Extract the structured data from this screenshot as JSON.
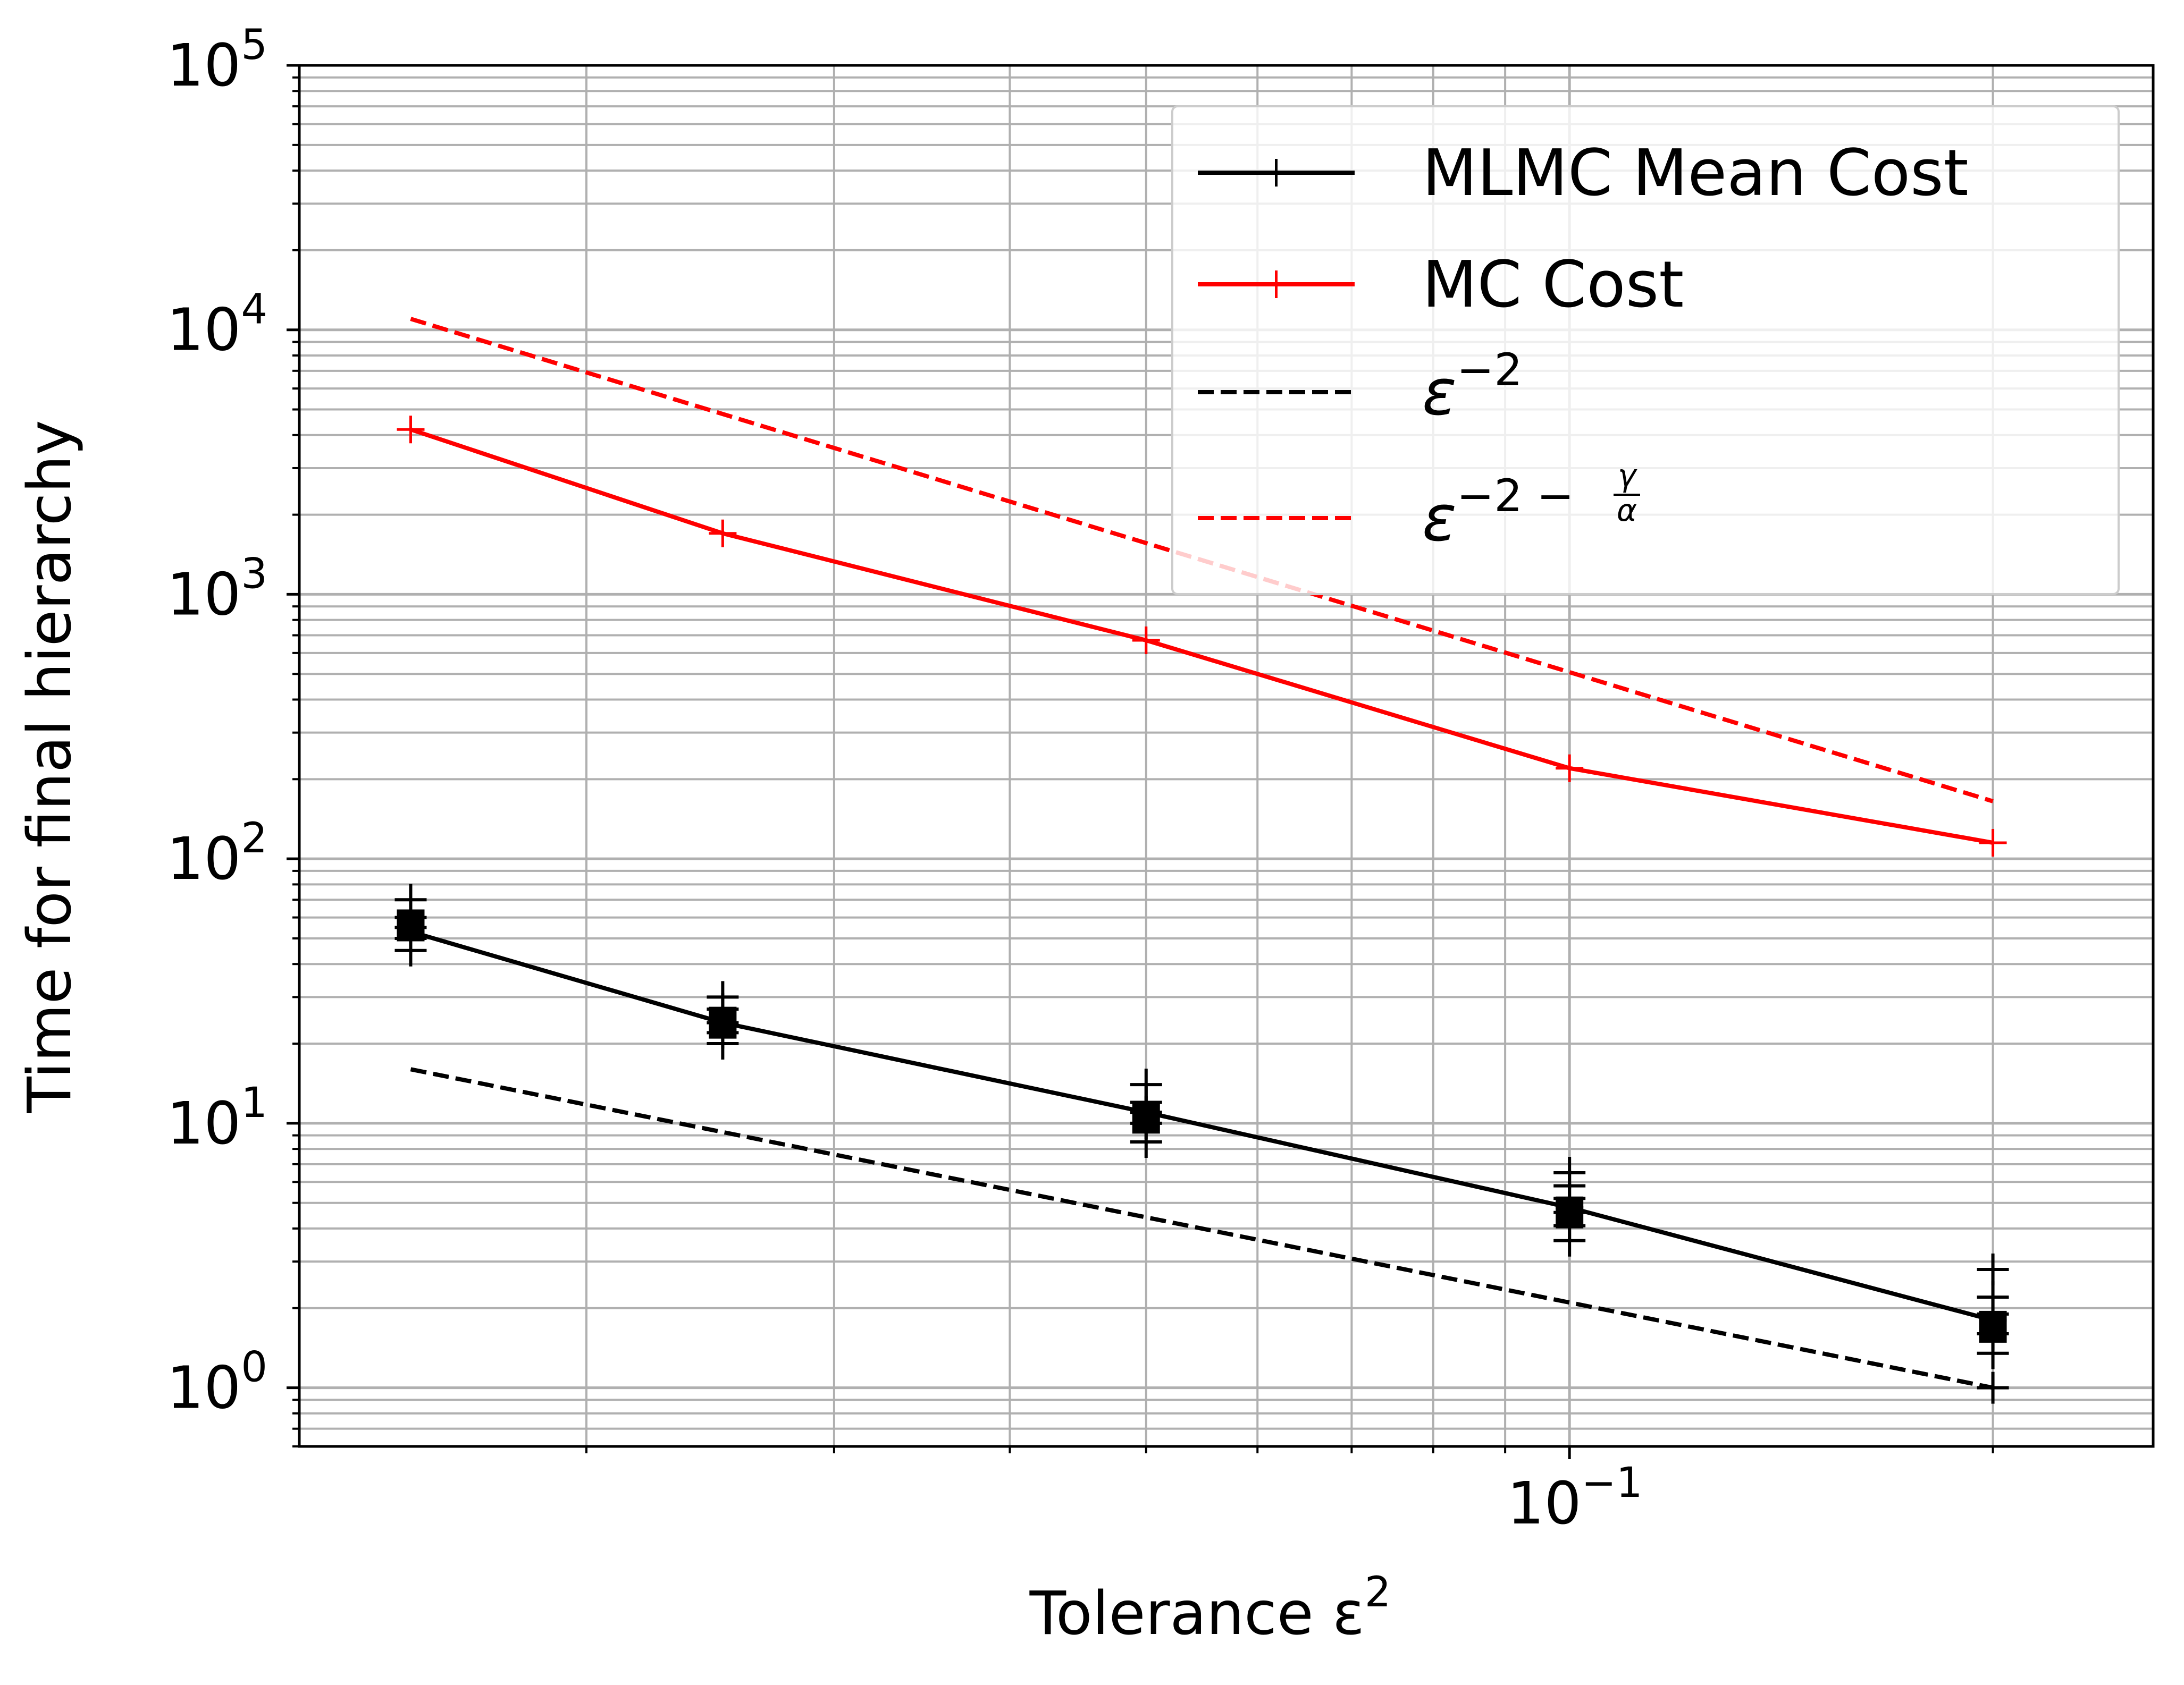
{
  "chart_data": {
    "type": "line",
    "xscale": "log",
    "yscale": "log",
    "xlabel": "Tolerance ε",
    "xlabel_sup": "2",
    "ylabel": "Time for final hierarchy",
    "xlim": [
      0.0125,
      0.26
    ],
    "ylim": [
      0.6,
      100000
    ],
    "grid": true,
    "x_ticks": [
      {
        "base": "10",
        "exp": "−1",
        "value": 0.1
      }
    ],
    "y_ticks": [
      {
        "base": "10",
        "exp": "0",
        "value": 1
      },
      {
        "base": "10",
        "exp": "1",
        "value": 10
      },
      {
        "base": "10",
        "exp": "2",
        "value": 100
      },
      {
        "base": "10",
        "exp": "3",
        "value": 1000
      },
      {
        "base": "10",
        "exp": "4",
        "value": 10000
      },
      {
        "base": "10",
        "exp": "5",
        "value": 100000
      }
    ],
    "legend_position": "top-right",
    "series": [
      {
        "name": "MLMC Mean Cost",
        "color": "#000000",
        "style": "solid",
        "marker": "plus",
        "x": [
          0.015,
          0.025,
          0.05,
          0.1,
          0.2
        ],
        "values": [
          53,
          24,
          11,
          4.8,
          1.8
        ],
        "scatter_points": [
          [
            0.015,
            70
          ],
          [
            0.015,
            60
          ],
          [
            0.015,
            55
          ],
          [
            0.015,
            50
          ],
          [
            0.015,
            45
          ],
          [
            0.025,
            30
          ],
          [
            0.025,
            27
          ],
          [
            0.025,
            24
          ],
          [
            0.025,
            22
          ],
          [
            0.025,
            20
          ],
          [
            0.05,
            14
          ],
          [
            0.05,
            12
          ],
          [
            0.05,
            11
          ],
          [
            0.05,
            10
          ],
          [
            0.05,
            8.5
          ],
          [
            0.1,
            6.5
          ],
          [
            0.1,
            5.8
          ],
          [
            0.1,
            5.2
          ],
          [
            0.1,
            4.6
          ],
          [
            0.1,
            4.1
          ],
          [
            0.1,
            3.6
          ],
          [
            0.2,
            2.8
          ],
          [
            0.2,
            2.2
          ],
          [
            0.2,
            1.9
          ],
          [
            0.2,
            1.6
          ],
          [
            0.2,
            1.35
          ],
          [
            0.2,
            1.0
          ]
        ],
        "box_points": [
          [
            0.015,
            56
          ],
          [
            0.025,
            24
          ],
          [
            0.05,
            10.5
          ],
          [
            0.1,
            4.6
          ],
          [
            0.2,
            1.7
          ]
        ]
      },
      {
        "name": "MC Cost",
        "color": "#ff0000",
        "style": "solid",
        "marker": "plus",
        "x": [
          0.015,
          0.025,
          0.05,
          0.1,
          0.2
        ],
        "values": [
          4200,
          1700,
          670,
          220,
          115
        ]
      },
      {
        "name": "ε",
        "name_sup": "−2",
        "color": "#000000",
        "style": "dashed",
        "marker": "none",
        "x": [
          0.015,
          0.2
        ],
        "values": [
          16,
          1.0
        ]
      },
      {
        "name": "ε",
        "name_sup": "−2 −",
        "name_frac_num": "γ",
        "name_frac_den": "α",
        "color": "#ff0000",
        "style": "dashed",
        "marker": "none",
        "x": [
          0.015,
          0.2
        ],
        "values": [
          11000,
          165
        ]
      }
    ]
  }
}
